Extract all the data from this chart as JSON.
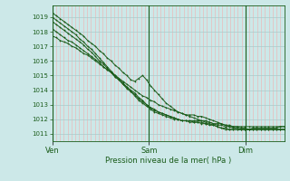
{
  "title": "Pression niveau de la mer( hPa )",
  "bg_color": "#cce8e8",
  "grid_minor_color": "#f0b0b0",
  "grid_major_color": "#aacaca",
  "line_color": "#1a5c1a",
  "ylim": [
    1010.5,
    1019.8
  ],
  "yticks": [
    1011,
    1012,
    1013,
    1014,
    1015,
    1016,
    1017,
    1018,
    1019
  ],
  "xtick_labels": [
    "Ven",
    "Sam",
    "Dim"
  ],
  "xtick_positions": [
    0.0,
    0.4167,
    0.8333
  ],
  "vline_positions": [
    0.0,
    0.4167,
    0.8333
  ],
  "series": [
    [
      1019.3,
      1019.1,
      1018.9,
      1018.7,
      1018.5,
      1018.3,
      1018.1,
      1017.9,
      1017.7,
      1017.4,
      1017.2,
      1017.0,
      1016.7,
      1016.5,
      1016.2,
      1016.0,
      1015.7,
      1015.5,
      1015.2,
      1015.0,
      1014.7,
      1014.6,
      1014.8,
      1015.0,
      1014.7,
      1014.3,
      1014.0,
      1013.7,
      1013.4,
      1013.1,
      1012.9,
      1012.7,
      1012.5,
      1012.4,
      1012.3,
      1012.3,
      1012.3,
      1012.2,
      1012.2,
      1012.1,
      1012.0,
      1011.9,
      1011.8,
      1011.7,
      1011.6,
      1011.5,
      1011.4,
      1011.4,
      1011.3,
      1011.3,
      1011.3,
      1011.4,
      1011.4,
      1011.4,
      1011.4,
      1011.4,
      1011.4,
      1011.4,
      1011.5,
      1011.5
    ],
    [
      1018.7,
      1018.5,
      1018.3,
      1018.1,
      1017.9,
      1017.7,
      1017.5,
      1017.3,
      1017.1,
      1016.8,
      1016.6,
      1016.3,
      1016.0,
      1015.8,
      1015.5,
      1015.2,
      1014.9,
      1014.7,
      1014.4,
      1014.1,
      1013.9,
      1013.6,
      1013.3,
      1013.1,
      1012.9,
      1012.7,
      1012.5,
      1012.4,
      1012.3,
      1012.2,
      1012.1,
      1012.0,
      1012.0,
      1011.9,
      1011.9,
      1011.9,
      1011.9,
      1011.9,
      1011.9,
      1011.9,
      1011.8,
      1011.7,
      1011.6,
      1011.6,
      1011.5,
      1011.5,
      1011.5,
      1011.5,
      1011.5,
      1011.5,
      1011.5,
      1011.5,
      1011.5,
      1011.5,
      1011.5,
      1011.5,
      1011.5,
      1011.5,
      1011.5,
      1011.5
    ],
    [
      1019.0,
      1018.8,
      1018.6,
      1018.4,
      1018.2,
      1018.0,
      1017.8,
      1017.5,
      1017.3,
      1017.0,
      1016.8,
      1016.5,
      1016.2,
      1015.9,
      1015.6,
      1015.3,
      1015.0,
      1014.8,
      1014.5,
      1014.2,
      1013.9,
      1013.7,
      1013.4,
      1013.2,
      1013.0,
      1012.8,
      1012.6,
      1012.5,
      1012.4,
      1012.3,
      1012.2,
      1012.1,
      1012.0,
      1011.9,
      1011.9,
      1011.9,
      1011.8,
      1011.8,
      1011.8,
      1011.7,
      1011.7,
      1011.6,
      1011.5,
      1011.4,
      1011.4,
      1011.3,
      1011.3,
      1011.3,
      1011.3,
      1011.3,
      1011.3,
      1011.3,
      1011.3,
      1011.3,
      1011.3,
      1011.3,
      1011.3,
      1011.3,
      1011.3,
      1011.3
    ],
    [
      1017.7,
      1017.6,
      1017.4,
      1017.3,
      1017.2,
      1017.0,
      1016.9,
      1016.7,
      1016.5,
      1016.4,
      1016.2,
      1016.0,
      1015.8,
      1015.6,
      1015.4,
      1015.2,
      1015.0,
      1014.8,
      1014.6,
      1014.4,
      1014.2,
      1014.0,
      1013.8,
      1013.6,
      1013.5,
      1013.3,
      1013.2,
      1013.0,
      1012.9,
      1012.8,
      1012.7,
      1012.6,
      1012.5,
      1012.4,
      1012.3,
      1012.2,
      1012.1,
      1012.0,
      1011.9,
      1011.8,
      1011.8,
      1011.7,
      1011.7,
      1011.7,
      1011.6,
      1011.6,
      1011.5,
      1011.5,
      1011.4,
      1011.4,
      1011.3,
      1011.3,
      1011.3,
      1011.3,
      1011.3,
      1011.3,
      1011.3,
      1011.3,
      1011.3,
      1011.3
    ],
    [
      1018.2,
      1018.0,
      1017.8,
      1017.6,
      1017.4,
      1017.3,
      1017.1,
      1016.9,
      1016.7,
      1016.5,
      1016.3,
      1016.1,
      1015.9,
      1015.6,
      1015.4,
      1015.2,
      1014.9,
      1014.7,
      1014.4,
      1014.2,
      1014.0,
      1013.8,
      1013.5,
      1013.3,
      1013.0,
      1012.8,
      1012.7,
      1012.5,
      1012.4,
      1012.3,
      1012.2,
      1012.1,
      1012.0,
      1011.9,
      1011.9,
      1011.8,
      1011.8,
      1011.8,
      1011.7,
      1011.7,
      1011.6,
      1011.6,
      1011.5,
      1011.4,
      1011.3,
      1011.3,
      1011.3,
      1011.3,
      1011.3,
      1011.3,
      1011.3,
      1011.3,
      1011.3,
      1011.3,
      1011.3,
      1011.3,
      1011.3,
      1011.3,
      1011.3,
      1011.3
    ]
  ],
  "n_vgrid": 60,
  "n_hgrid": 9
}
